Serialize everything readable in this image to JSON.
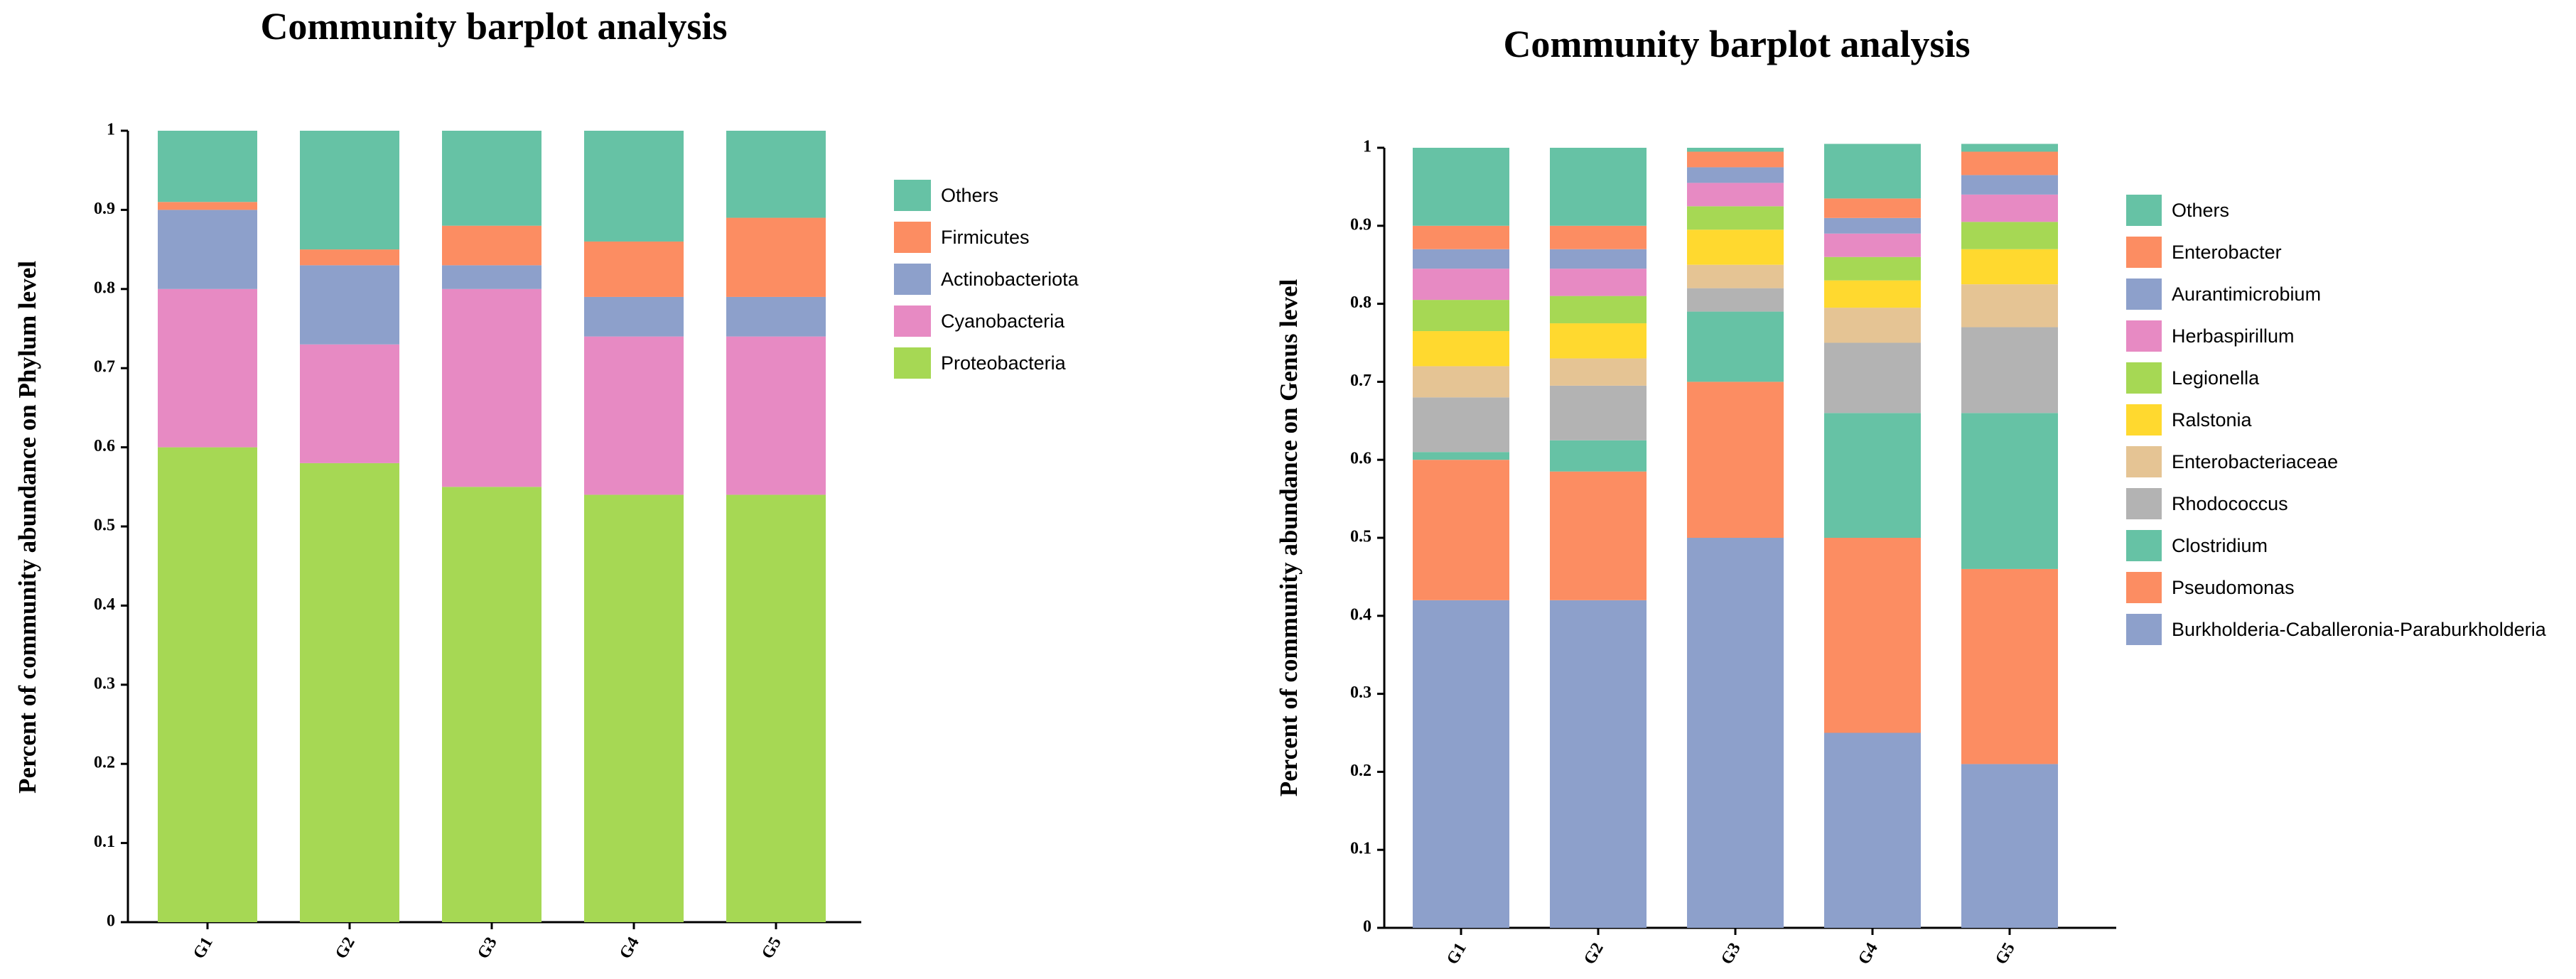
{
  "chart_data": [
    {
      "type": "bar",
      "stacked": true,
      "title": "Community barplot analysis",
      "xlabel": "",
      "ylabel": "Percent of community abundance on Phylum level",
      "ylim": [
        0,
        1
      ],
      "yticks": [
        "0",
        "0.1",
        "0.2",
        "0.3",
        "0.4",
        "0.5",
        "0.6",
        "0.7",
        "0.8",
        "0.9",
        "1"
      ],
      "categories": [
        "G1",
        "G2",
        "G3",
        "G4",
        "G5"
      ],
      "series": [
        {
          "name": "Proteobacteria",
          "color": "#a6d854",
          "values": [
            0.6,
            0.58,
            0.55,
            0.54,
            0.54
          ]
        },
        {
          "name": "Cyanobacteria",
          "color": "#e78ac3",
          "values": [
            0.2,
            0.15,
            0.25,
            0.2,
            0.2
          ]
        },
        {
          "name": "Actinobacteriota",
          "color": "#8da0cb",
          "values": [
            0.1,
            0.1,
            0.03,
            0.05,
            0.05
          ]
        },
        {
          "name": "Firmicutes",
          "color": "#fc8d62",
          "values": [
            0.01,
            0.02,
            0.05,
            0.07,
            0.1
          ]
        },
        {
          "name": "Others",
          "color": "#66c2a5",
          "values": [
            0.09,
            0.15,
            0.12,
            0.14,
            0.11
          ]
        }
      ],
      "legend_order": [
        "Others",
        "Firmicutes",
        "Actinobacteriota",
        "Cyanobacteria",
        "Proteobacteria"
      ],
      "legend": "right"
    },
    {
      "type": "bar",
      "stacked": true,
      "title": "Community barplot analysis",
      "xlabel": "",
      "ylabel": "Percent of community abundance on Genus level",
      "ylim": [
        0,
        1
      ],
      "yticks": [
        "0",
        "0.1",
        "0.2",
        "0.3",
        "0.4",
        "0.5",
        "0.6",
        "0.7",
        "0.8",
        "0.9",
        "1"
      ],
      "categories": [
        "G1",
        "G2",
        "G3",
        "G4",
        "G5"
      ],
      "series": [
        {
          "name": "Burkholderia-Caballeronia-Paraburkholderia",
          "color": "#8da0cb",
          "values": [
            0.42,
            0.42,
            0.5,
            0.25,
            0.21
          ]
        },
        {
          "name": "Pseudomonas",
          "color": "#fc8d62",
          "values": [
            0.18,
            0.165,
            0.2,
            0.25,
            0.25
          ]
        },
        {
          "name": "Clostridium",
          "color": "#66c2a5",
          "values": [
            0.01,
            0.04,
            0.09,
            0.16,
            0.2
          ]
        },
        {
          "name": "Rhodococcus",
          "color": "#b3b3b3",
          "values": [
            0.07,
            0.07,
            0.03,
            0.09,
            0.11
          ]
        },
        {
          "name": "Enterobacteriaceae",
          "color": "#e5c494",
          "values": [
            0.04,
            0.035,
            0.03,
            0.045,
            0.055
          ]
        },
        {
          "name": "Ralstonia",
          "color": "#ffd92f",
          "values": [
            0.045,
            0.045,
            0.045,
            0.035,
            0.045
          ]
        },
        {
          "name": "Legionella",
          "color": "#a6d854",
          "values": [
            0.04,
            0.035,
            0.03,
            0.03,
            0.035
          ]
        },
        {
          "name": "Herbaspirillum",
          "color": "#e78ac3",
          "values": [
            0.04,
            0.035,
            0.03,
            0.03,
            0.035
          ]
        },
        {
          "name": "Aurantimicrobium",
          "color": "#8da0cb",
          "values": [
            0.025,
            0.025,
            0.02,
            0.02,
            0.025
          ]
        },
        {
          "name": "Enterobacter",
          "color": "#fc8d62",
          "values": [
            0.03,
            0.03,
            0.02,
            0.025,
            0.03
          ]
        },
        {
          "name": "Others",
          "color": "#66c2a5",
          "values": [
            0.1,
            0.1,
            0.005,
            0.07,
            0.01
          ]
        }
      ],
      "legend_order": [
        "Others",
        "Enterobacter",
        "Aurantimicrobium",
        "Herbaspirillum",
        "Legionella",
        "Ralstonia",
        "Enterobacteriaceae",
        "Rhodococcus",
        "Clostridium",
        "Pseudomonas",
        "Burkholderia-Caballeronia-Paraburkholderia"
      ],
      "legend": "right"
    }
  ]
}
